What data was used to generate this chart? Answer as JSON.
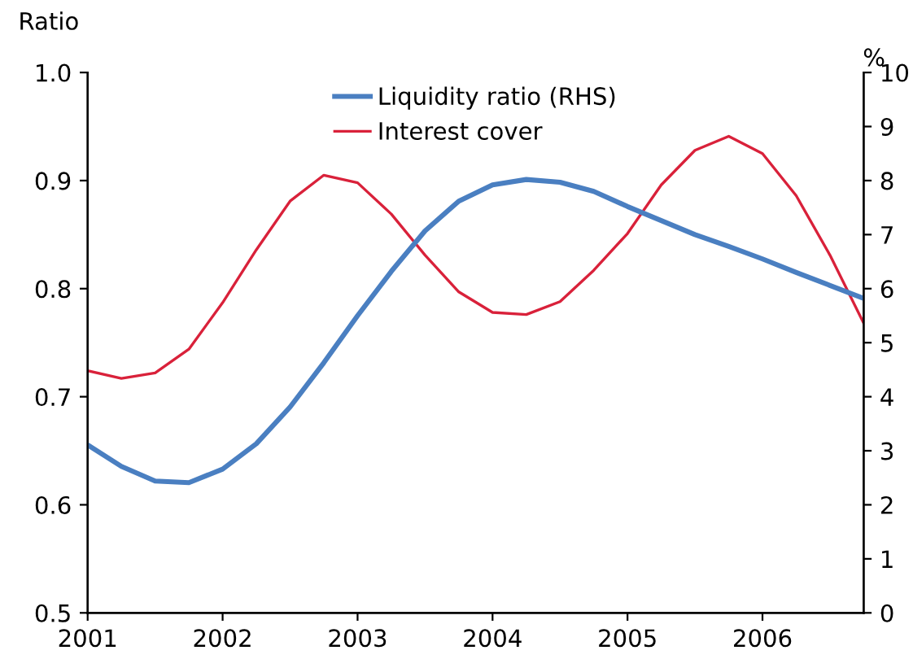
{
  "chart_data": {
    "type": "line",
    "ylabel": "Ratio",
    "y2label": "%",
    "x": [
      2001.0,
      2001.25,
      2001.5,
      2001.75,
      2002.0,
      2002.25,
      2002.5,
      2002.75,
      2003.0,
      2003.25,
      2003.5,
      2003.75,
      2004.0,
      2004.25,
      2004.5,
      2004.75,
      2005.0,
      2005.25,
      2005.5,
      2005.75,
      2006.0,
      2006.25,
      2006.5,
      2006.75
    ],
    "series": [
      {
        "name": "Liquidity ratio (RHS)",
        "color": "#4a7fc1",
        "axis": "y2",
        "values": [
          3.11,
          2.71,
          2.44,
          2.41,
          2.66,
          3.13,
          3.81,
          4.63,
          5.5,
          6.32,
          7.07,
          7.62,
          7.92,
          8.02,
          7.97,
          7.8,
          7.52,
          7.26,
          7.0,
          6.78,
          6.55,
          6.3,
          6.06,
          5.82
        ]
      },
      {
        "name": "Interest cover",
        "color": "#d9213a",
        "values": [
          0.724,
          0.717,
          0.722,
          0.744,
          0.787,
          0.836,
          0.881,
          0.905,
          0.898,
          0.869,
          0.831,
          0.797,
          0.778,
          0.776,
          0.788,
          0.817,
          0.851,
          0.896,
          0.928,
          0.941,
          0.925,
          0.886,
          0.831,
          0.768
        ]
      }
    ],
    "xlim": [
      2001,
      2006.75
    ],
    "xticks": [
      2001,
      2002,
      2003,
      2004,
      2005,
      2006
    ],
    "ylim": [
      0.5,
      1.0
    ],
    "yticks": [
      {
        "value": 0.5,
        "label": "0.5"
      },
      {
        "value": 0.6,
        "label": "0.6"
      },
      {
        "value": 0.7,
        "label": "0.7"
      },
      {
        "value": 0.8,
        "label": "0.8"
      },
      {
        "value": 0.9,
        "label": "0.9"
      },
      {
        "value": 1.0,
        "label": "1.0"
      }
    ],
    "y2lim": [
      0,
      10
    ],
    "y2ticks": [
      0,
      1,
      2,
      3,
      4,
      5,
      6,
      7,
      8,
      9,
      10
    ],
    "legend": "top",
    "grid": false
  }
}
